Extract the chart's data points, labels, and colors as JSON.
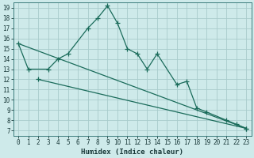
{
  "xlabel": "Humidex (Indice chaleur)",
  "background_color": "#ceeaea",
  "grid_color": "#a8cccc",
  "line_color": "#1a6b5a",
  "xlim": [
    -0.5,
    23.5
  ],
  "ylim": [
    6.5,
    19.5
  ],
  "xticks": [
    0,
    1,
    2,
    3,
    4,
    5,
    6,
    7,
    8,
    9,
    10,
    11,
    12,
    13,
    14,
    15,
    16,
    17,
    18,
    19,
    20,
    21,
    22,
    23
  ],
  "yticks": [
    7,
    8,
    9,
    10,
    11,
    12,
    13,
    14,
    15,
    16,
    17,
    18,
    19
  ],
  "line1_x": [
    0,
    1,
    3,
    4,
    5,
    7,
    8,
    9,
    10,
    11,
    12,
    13,
    14,
    16,
    17,
    18,
    19,
    21,
    22,
    23
  ],
  "line1_y": [
    15.5,
    13.0,
    13.0,
    14.0,
    14.5,
    17.0,
    18.0,
    19.2,
    17.5,
    15.0,
    14.5,
    13.0,
    14.5,
    11.5,
    11.8,
    9.2,
    8.8,
    8.0,
    7.6,
    7.2
  ],
  "line2_x": [
    2,
    23
  ],
  "line2_y": [
    12.0,
    7.2
  ],
  "line3_x": [
    0,
    23
  ],
  "line3_y": [
    15.5,
    7.2
  ],
  "marker": "+",
  "markersize": 4,
  "linewidth": 0.9
}
